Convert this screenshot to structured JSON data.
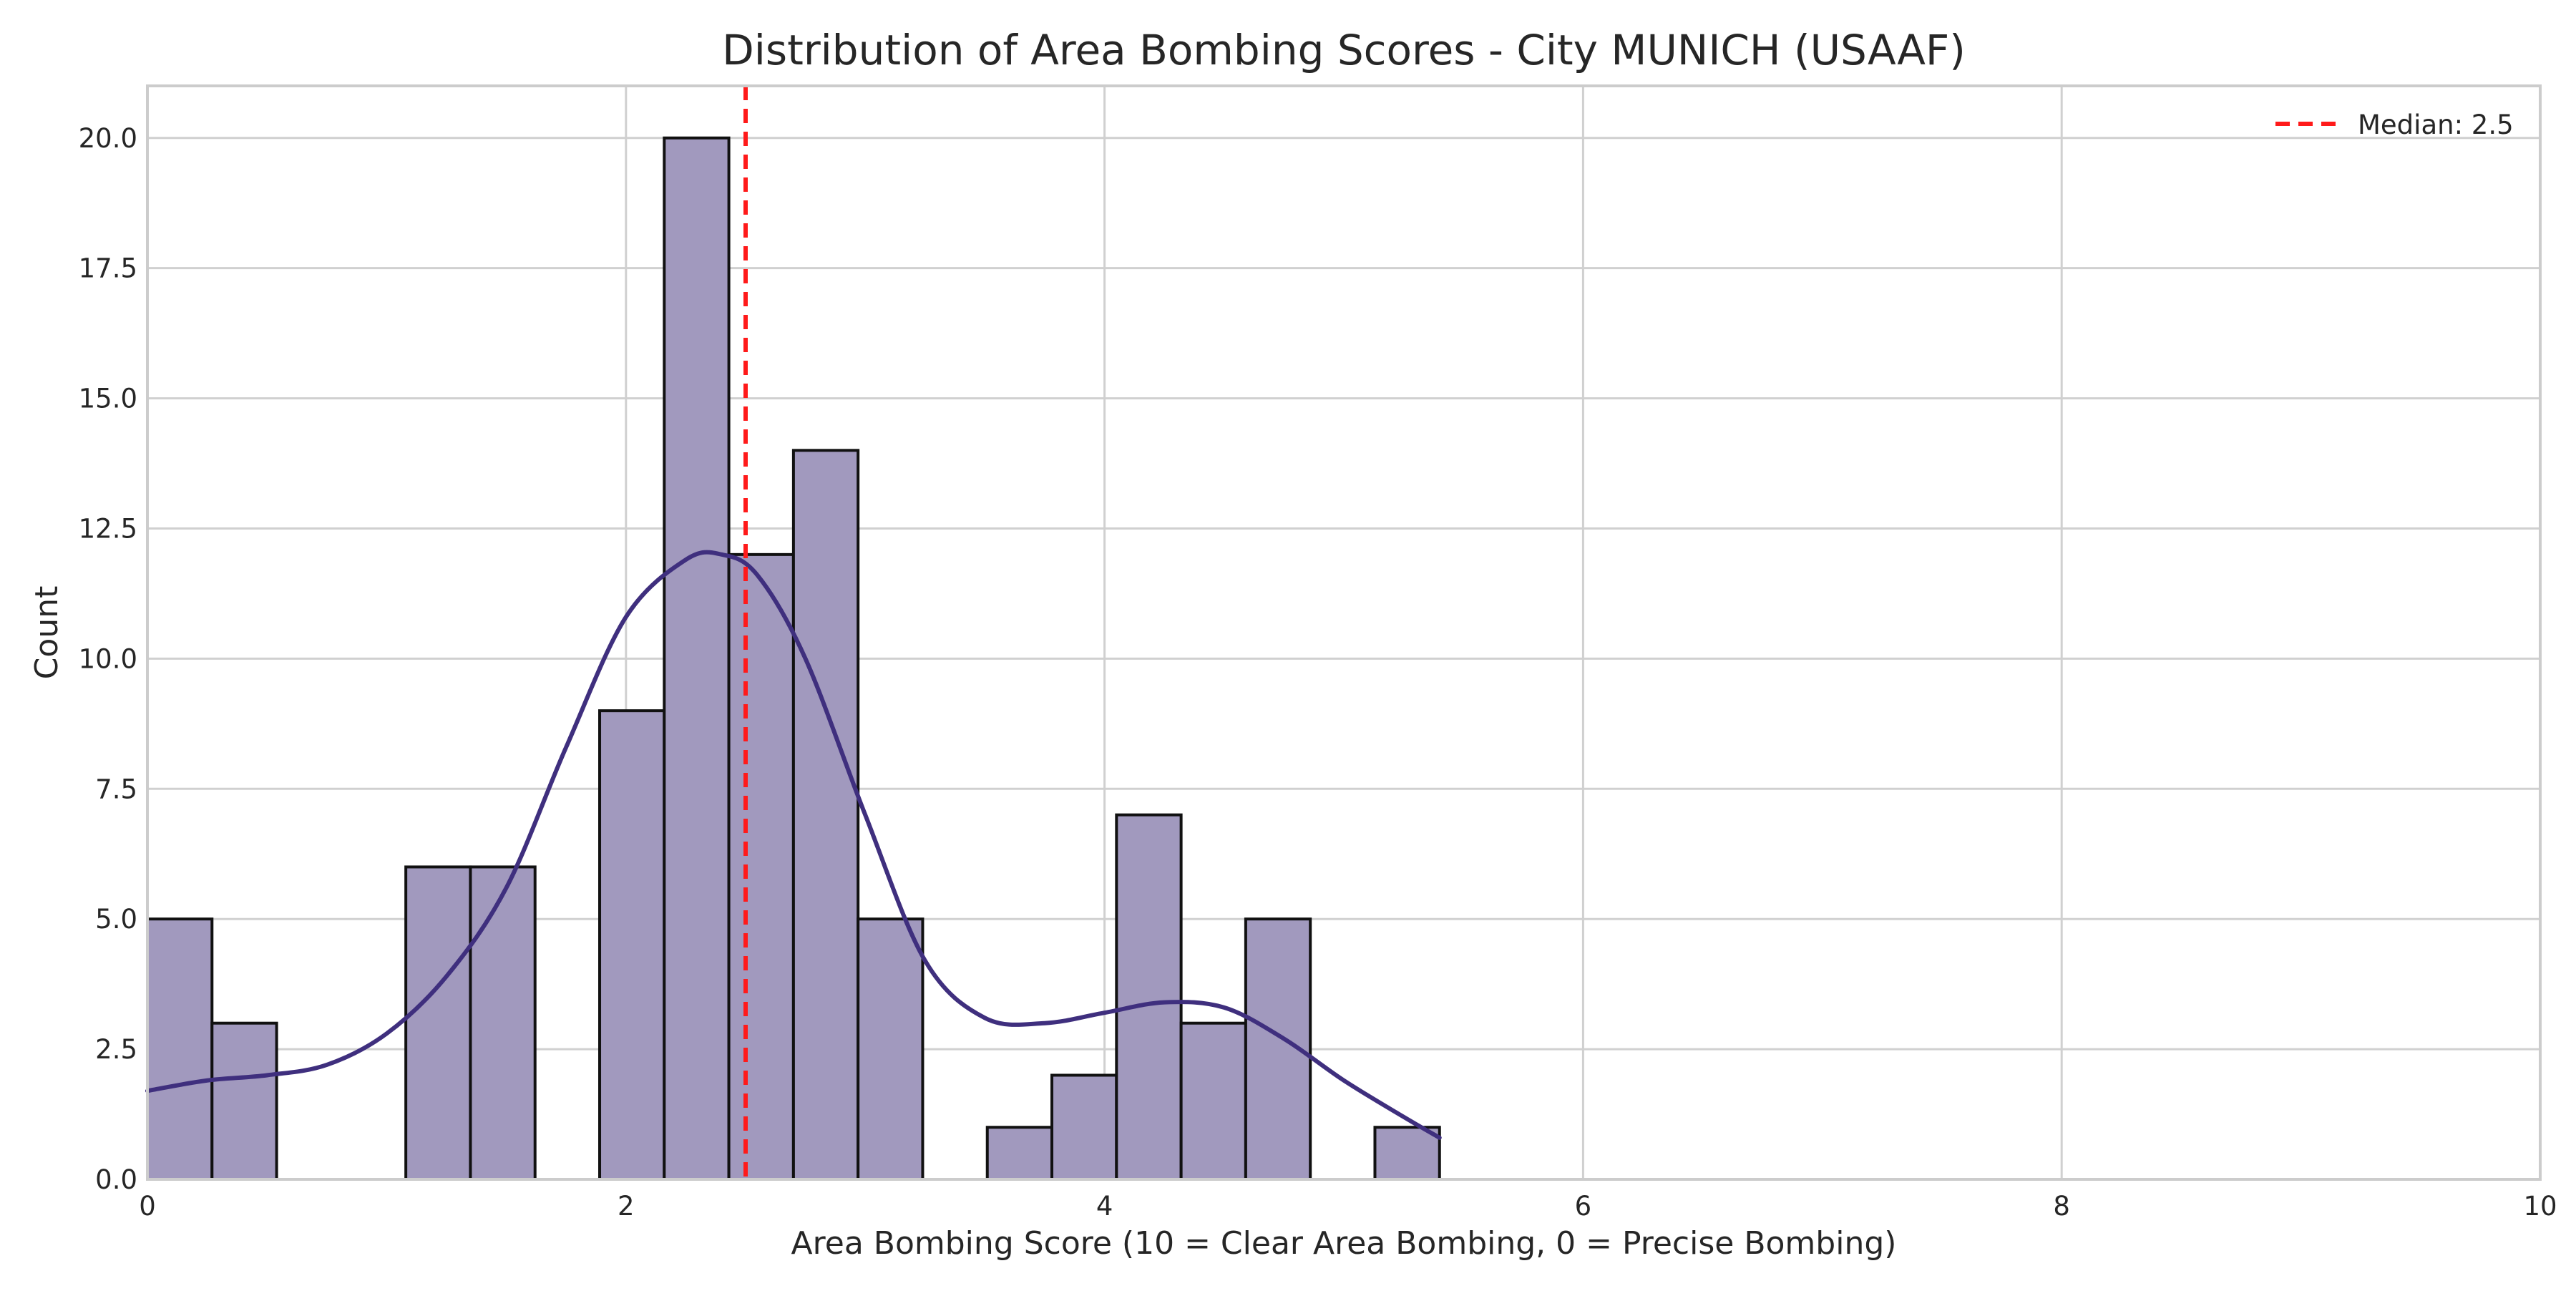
{
  "chart_data": {
    "type": "bar",
    "title": "Distribution of Area Bombing Scores - City MUNICH (USAAF)",
    "xlabel": "Area Bombing Score (10 = Clear Area Bombing, 0 = Precise Bombing)",
    "ylabel": "Count",
    "xlim": [
      0,
      10
    ],
    "ylim": [
      0,
      21
    ],
    "x_ticks": [
      "0",
      "2",
      "4",
      "6",
      "8",
      "10"
    ],
    "y_ticks": [
      "0.0",
      "2.5",
      "5.0",
      "7.5",
      "10.0",
      "12.5",
      "15.0",
      "17.5",
      "20.0"
    ],
    "grid": true,
    "legend_position": "top-right",
    "bins": [
      {
        "x0": 0.0,
        "x1": 0.27,
        "count": 5
      },
      {
        "x0": 0.27,
        "x1": 0.54,
        "count": 3
      },
      {
        "x0": 1.08,
        "x1": 1.35,
        "count": 6
      },
      {
        "x0": 1.35,
        "x1": 1.62,
        "count": 6
      },
      {
        "x0": 1.89,
        "x1": 2.16,
        "count": 9
      },
      {
        "x0": 2.16,
        "x1": 2.43,
        "count": 20
      },
      {
        "x0": 2.43,
        "x1": 2.7,
        "count": 12
      },
      {
        "x0": 2.7,
        "x1": 2.97,
        "count": 14
      },
      {
        "x0": 2.97,
        "x1": 3.24,
        "count": 5
      },
      {
        "x0": 3.51,
        "x1": 3.78,
        "count": 1
      },
      {
        "x0": 3.78,
        "x1": 4.05,
        "count": 2
      },
      {
        "x0": 4.05,
        "x1": 4.32,
        "count": 7
      },
      {
        "x0": 4.32,
        "x1": 4.59,
        "count": 3
      },
      {
        "x0": 4.59,
        "x1": 4.86,
        "count": 5
      },
      {
        "x0": 5.13,
        "x1": 5.4,
        "count": 1
      }
    ],
    "kde": {
      "x": [
        0.0,
        0.25,
        0.5,
        0.75,
        1.0,
        1.25,
        1.5,
        1.75,
        2.0,
        2.25,
        2.4,
        2.55,
        2.75,
        3.0,
        3.25,
        3.5,
        3.75,
        4.0,
        4.25,
        4.5,
        4.75,
        5.0,
        5.25,
        5.4
      ],
      "y": [
        1.7,
        1.9,
        2.0,
        2.2,
        2.8,
        3.9,
        5.6,
        8.3,
        10.8,
        11.9,
        12.0,
        11.6,
        10.0,
        7.0,
        4.2,
        3.1,
        3.0,
        3.2,
        3.4,
        3.3,
        2.7,
        1.9,
        1.2,
        0.8
      ]
    },
    "median": {
      "value": 2.5,
      "label": "Median: 2.5"
    },
    "colors": {
      "bar_fill": "#a199be",
      "bar_edge": "#111111",
      "kde_line": "#3f2f7e",
      "median_line": "#ff1a1a",
      "grid": "#d0d0d0",
      "frame": "#cccccc",
      "text": "#262626"
    }
  }
}
